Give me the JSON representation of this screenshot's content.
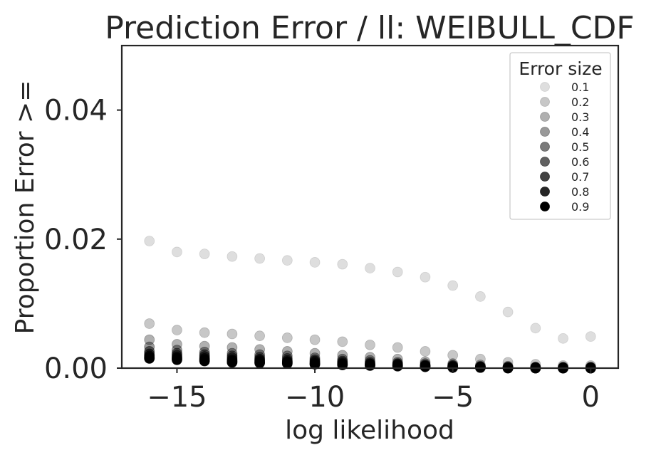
{
  "chart_data": {
    "type": "scatter",
    "title": "Prediction Error / ll: WEIBULL_CDF",
    "xlabel": "log likelihood",
    "ylabel": "Proportion Error >=",
    "xlim": [
      -17,
      1
    ],
    "ylim": [
      0,
      0.05
    ],
    "x_ticks": [
      -15,
      -10,
      -5,
      0
    ],
    "x_tick_labels": [
      "−15",
      "−10",
      "−5",
      "0"
    ],
    "y_ticks": [
      0,
      0.02,
      0.04
    ],
    "y_tick_labels": [
      "0.00",
      "0.02",
      "0.04"
    ],
    "grid": false,
    "legend": {
      "title": "Error size",
      "placement": "top-right"
    },
    "x": [
      -16,
      -15,
      -14,
      -13,
      -12,
      -11,
      -10,
      -9,
      -8,
      -7,
      -6,
      -5,
      -4,
      -3,
      -2,
      -1,
      0
    ],
    "series": [
      {
        "name": "0.1",
        "color": "#000000",
        "opacity": 0.13,
        "values": [
          0.0197,
          0.018,
          0.0177,
          0.0173,
          0.017,
          0.0167,
          0.0164,
          0.0161,
          0.0155,
          0.0149,
          0.0141,
          0.0128,
          0.0111,
          0.0087,
          0.0062,
          0.0046,
          0.0049
        ]
      },
      {
        "name": "0.2",
        "color": "#000000",
        "opacity": 0.22,
        "values": [
          0.0069,
          0.0059,
          0.0055,
          0.0053,
          0.005,
          0.0047,
          0.0044,
          0.0041,
          0.0036,
          0.0032,
          0.0026,
          0.002,
          0.0014,
          0.0009,
          0.0006,
          0.0004,
          0.0004
        ]
      },
      {
        "name": "0.3",
        "color": "#000000",
        "opacity": 0.31,
        "values": [
          0.0044,
          0.0037,
          0.0034,
          0.0032,
          0.0029,
          0.0026,
          0.0023,
          0.002,
          0.0017,
          0.0014,
          0.001,
          0.0007,
          0.0005,
          0.0003,
          0.0002,
          0.0002,
          0.0002
        ]
      },
      {
        "name": "0.4",
        "color": "#000000",
        "opacity": 0.4,
        "values": [
          0.0033,
          0.0028,
          0.0025,
          0.0023,
          0.0021,
          0.0019,
          0.0016,
          0.0014,
          0.0012,
          0.0009,
          0.0007,
          0.0005,
          0.0003,
          0.0002,
          0.0001,
          0.0001,
          0.0001
        ]
      },
      {
        "name": "0.5",
        "color": "#000000",
        "opacity": 0.52,
        "values": [
          0.0026,
          0.0023,
          0.0021,
          0.0019,
          0.0017,
          0.0015,
          0.0013,
          0.0011,
          0.0009,
          0.0007,
          0.0005,
          0.0004,
          0.0002,
          0.0001,
          0.0001,
          0.0001,
          0.0001
        ]
      },
      {
        "name": "0.6",
        "color": "#000000",
        "opacity": 0.62,
        "values": [
          0.0022,
          0.002,
          0.0018,
          0.0016,
          0.0014,
          0.0012,
          0.0011,
          0.0009,
          0.0007,
          0.0006,
          0.0004,
          0.0003,
          0.0002,
          0.0001,
          0.0001,
          0.0,
          0.0
        ]
      },
      {
        "name": "0.7",
        "color": "#000000",
        "opacity": 0.74,
        "values": [
          0.0019,
          0.0017,
          0.0015,
          0.0013,
          0.0012,
          0.001,
          0.0009,
          0.0007,
          0.0006,
          0.0005,
          0.0003,
          0.0002,
          0.0001,
          0.0001,
          0.0,
          0.0,
          0.0
        ]
      },
      {
        "name": "0.8",
        "color": "#000000",
        "opacity": 0.85,
        "values": [
          0.0017,
          0.0015,
          0.0013,
          0.0011,
          0.001,
          0.0009,
          0.0007,
          0.0006,
          0.0005,
          0.0004,
          0.0003,
          0.0002,
          0.0001,
          0.0,
          0.0,
          0.0,
          0.0
        ]
      },
      {
        "name": "0.9",
        "color": "#000000",
        "opacity": 1.0,
        "values": [
          0.0015,
          0.0013,
          0.0011,
          0.0009,
          0.0008,
          0.0007,
          0.0006,
          0.0005,
          0.0004,
          0.0003,
          0.0002,
          0.0001,
          0.0001,
          0.0,
          0.0,
          0.0,
          0.0
        ]
      }
    ]
  }
}
